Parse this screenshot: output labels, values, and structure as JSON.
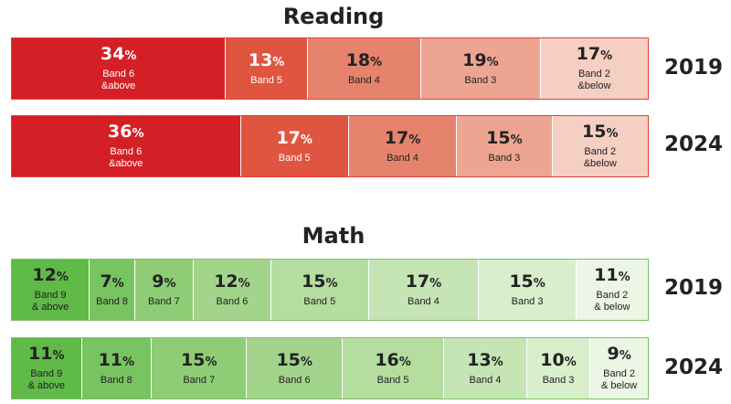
{
  "chart_data": [
    {
      "type": "bar",
      "orientation": "horizontal-stacked-100",
      "title": "Reading",
      "border_color": "#e2403b",
      "text_light": "#ffffff",
      "text_dark": "#222222",
      "rows": [
        {
          "year": "2019",
          "segments": [
            {
              "value": 34,
              "label": "Band 6\n&above",
              "color": "#d51f26"
            },
            {
              "value": 13,
              "label": "Band 5",
              "color": "#e05540"
            },
            {
              "value": 18,
              "label": "Band 4",
              "color": "#e6836d"
            },
            {
              "value": 19,
              "label": "Band 3",
              "color": "#eda592"
            },
            {
              "value": 17,
              "label": "Band 2\n&below",
              "color": "#f5cfc2"
            }
          ]
        },
        {
          "year": "2024",
          "segments": [
            {
              "value": 36,
              "label": "Band 6\n&above",
              "color": "#d51f26"
            },
            {
              "value": 17,
              "label": "Band 5",
              "color": "#e05540"
            },
            {
              "value": 17,
              "label": "Band 4",
              "color": "#e6836d"
            },
            {
              "value": 15,
              "label": "Band 3",
              "color": "#eda592"
            },
            {
              "value": 15,
              "label": "Band 2\n&below",
              "color": "#f5cfc2"
            }
          ]
        }
      ]
    },
    {
      "type": "bar",
      "orientation": "horizontal-stacked-100",
      "title": "Math",
      "border_color": "#7cc163",
      "text_light": "#222222",
      "text_dark": "#222222",
      "rows": [
        {
          "year": "2019",
          "segments": [
            {
              "value": 12,
              "label": "Band 9\n& above",
              "color": "#5fba47"
            },
            {
              "value": 7,
              "label": "Band 8",
              "color": "#78c460"
            },
            {
              "value": 9,
              "label": "Band 7",
              "color": "#8ecd76"
            },
            {
              "value": 12,
              "label": "Band 6",
              "color": "#a2d58b"
            },
            {
              "value": 15,
              "label": "Band 5",
              "color": "#b4dd9f"
            },
            {
              "value": 17,
              "label": "Band 4",
              "color": "#c5e5b5"
            },
            {
              "value": 15,
              "label": "Band 3",
              "color": "#d9efcc"
            },
            {
              "value": 11,
              "label": "Band 2\n& below",
              "color": "#ebf6e4"
            }
          ]
        },
        {
          "year": "2024",
          "segments": [
            {
              "value": 11,
              "label": "Band 9\n& above",
              "color": "#5fba47"
            },
            {
              "value": 11,
              "label": "Band 8",
              "color": "#78c460"
            },
            {
              "value": 15,
              "label": "Band 7",
              "color": "#8ecd76"
            },
            {
              "value": 15,
              "label": "Band 6",
              "color": "#a2d58b"
            },
            {
              "value": 16,
              "label": "Band 5",
              "color": "#b4dd9f"
            },
            {
              "value": 13,
              "label": "Band 4",
              "color": "#c5e5b5"
            },
            {
              "value": 10,
              "label": "Band 3",
              "color": "#d9efcc"
            },
            {
              "value": 9,
              "label": "Band 2\n& below",
              "color": "#ebf6e4"
            }
          ]
        }
      ]
    }
  ],
  "percent_symbol": "%"
}
